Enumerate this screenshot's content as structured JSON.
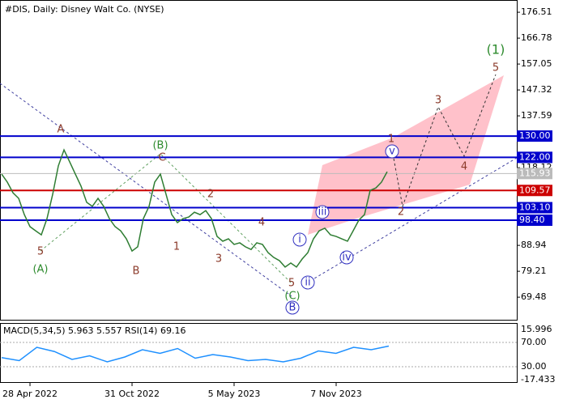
{
  "chart_data": {
    "type": "line",
    "title": "#DIS, Daily:  Disney Walt Co. (NYSE)",
    "series": [
      {
        "name": "DIS",
        "color": "#2e7d32",
        "values": [
          115.7,
          112.7,
          108.7,
          106.6,
          100.5,
          95.97,
          94.4,
          92.9,
          99.0,
          108.1,
          118.8,
          124.8,
          120.3,
          115.7,
          111.2,
          105.1,
          103.6,
          106.6,
          103.6,
          99.0,
          96.0,
          94.4,
          91.4,
          86.8,
          88.4,
          99.0,
          103.6,
          112.7,
          115.7,
          108.1,
          100.5,
          97.5,
          99.0,
          99.6,
          101.4,
          100.5,
          102.0,
          99.0,
          92.3,
          90.5,
          91.4,
          89.3,
          89.9,
          88.4,
          87.4,
          89.9,
          89.3,
          86.2,
          84.4,
          83.2,
          80.8,
          82.3,
          80.8,
          83.8,
          86.2,
          91.4,
          94.4,
          95.4,
          92.9,
          92.3,
          91.4,
          90.5,
          94.4,
          98.4,
          100.5,
          109.6,
          110.5,
          112.7,
          116.6
        ]
      }
    ],
    "xlim": [
      -0.29,
      90.86
    ],
    "xticks": [
      {
        "value": 5,
        "label": "28 Apr 2022"
      },
      {
        "value": 23,
        "label": "31 Oct 2022"
      },
      {
        "value": 41,
        "label": "5 May 2023"
      },
      {
        "value": 59,
        "label": "7 Nov 2023"
      }
    ],
    "ylim": [
      61.0,
      181.1
    ],
    "yticks": [
      176.51,
      166.78,
      157.05,
      147.32,
      137.59,
      118.12,
      88.94,
      79.21,
      69.48
    ],
    "current_price": 115.93,
    "levels": [
      {
        "value": 130.0,
        "label": "130.00",
        "color": "#0000cc"
      },
      {
        "value": 122.0,
        "label": "122.00",
        "color": "#0000cc"
      },
      {
        "value": 109.57,
        "label": "109.57",
        "color": "#cc0000"
      },
      {
        "value": 103.1,
        "label": "103.10",
        "color": "#0000cc"
      },
      {
        "value": 98.4,
        "label": "98.40",
        "color": "#0000cc"
      }
    ],
    "annotations": [
      "A",
      "B",
      "C",
      "(A)",
      "(B)",
      "(C)",
      "1",
      "2",
      "3",
      "4",
      "5",
      "5",
      "i",
      "ii",
      "iii",
      "iv",
      "v",
      "B",
      "1",
      "2",
      "3",
      "4",
      "5",
      "(1)"
    ],
    "indicator": {
      "title": "MACD(5,34,5) 5.963 5.557 RSI(14) 69.16",
      "rsi": [
        45,
        40,
        62,
        55,
        42,
        48,
        38,
        46,
        58,
        52,
        60,
        44,
        50,
        46,
        40,
        42,
        38,
        44,
        56,
        52,
        62,
        58,
        64
      ],
      "rsilim": [
        7.3,
        100.7
      ],
      "rsiticks": [
        70.0,
        30.0
      ],
      "rsitick_labels": [
        "70.00",
        "30.00"
      ],
      "macd_scale": [
        "15.996",
        "-17.433"
      ]
    }
  }
}
